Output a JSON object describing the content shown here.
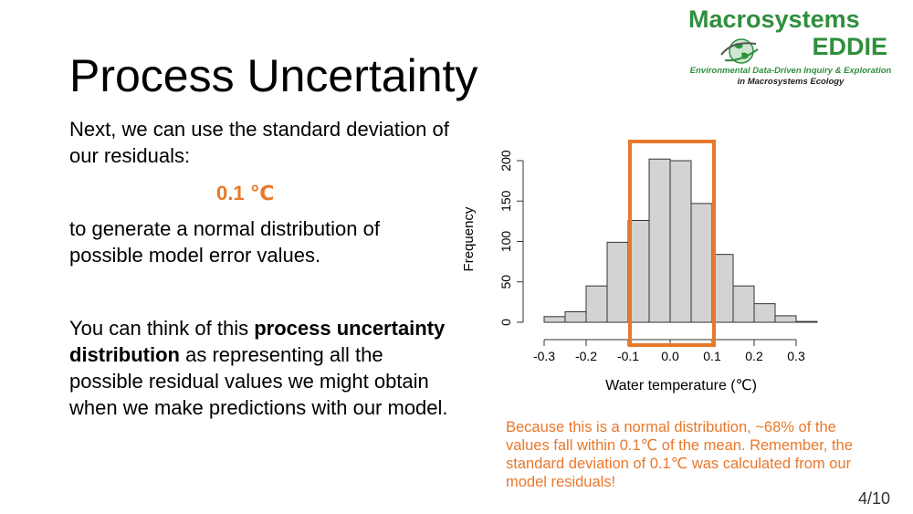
{
  "slide": {
    "title": "Process Uncertainty",
    "logo": {
      "line1": "Macrosystems",
      "line2": "EDDIE",
      "subtitle1": "Environmental Data-Driven Inquiry & Exploration",
      "subtitle2": "in Macrosystems Ecology",
      "icon": "globe-swirl-icon"
    },
    "text1": "Next, we can use the standard deviation of our residuals:",
    "sd_value": "0.1 ℃",
    "text2": "to generate a normal distribution of possible model error values.",
    "text3_pre": "You can think of this ",
    "text3_bold": "process uncertainty distribution",
    "text3_post": " as representing all the possible residual values we might obtain when we make predictions with our model.",
    "note": "Because this is a normal distribution, ~68% of the values fall within 0.1℃ of the mean. Remember, the standard deviation of 0.1℃ was calculated from our model residuals!",
    "page_number": "4/10",
    "colors": {
      "accent": "#e9782a",
      "logo_green": "#2f8f3d",
      "bar_fill": "#d3d3d3"
    }
  },
  "chart_data": {
    "type": "bar",
    "xlabel": "Water temperature (℃)",
    "ylabel": "Frequency",
    "xticks": [
      "-0.3",
      "-0.2",
      "-0.1",
      "0.0",
      "0.1",
      "0.2",
      "0.3"
    ],
    "xtick_values": [
      -0.3,
      -0.2,
      -0.1,
      0.0,
      0.1,
      0.2,
      0.3
    ],
    "yticks": [
      "0",
      "50",
      "100",
      "150",
      "200"
    ],
    "ytick_values": [
      0,
      50,
      100,
      150,
      200
    ],
    "xlim": [
      -0.3,
      0.35
    ],
    "ylim": [
      0,
      200
    ],
    "bin_width": 0.05,
    "bins_start": [
      -0.3,
      -0.25,
      -0.2,
      -0.15,
      -0.1,
      -0.05,
      0.0,
      0.05,
      0.1,
      0.15,
      0.2,
      0.25,
      0.3
    ],
    "values": [
      7,
      13,
      45,
      99,
      126,
      202,
      200,
      147,
      84,
      45,
      23,
      8,
      1
    ],
    "highlight_range": [
      -0.1,
      0.1
    ]
  }
}
